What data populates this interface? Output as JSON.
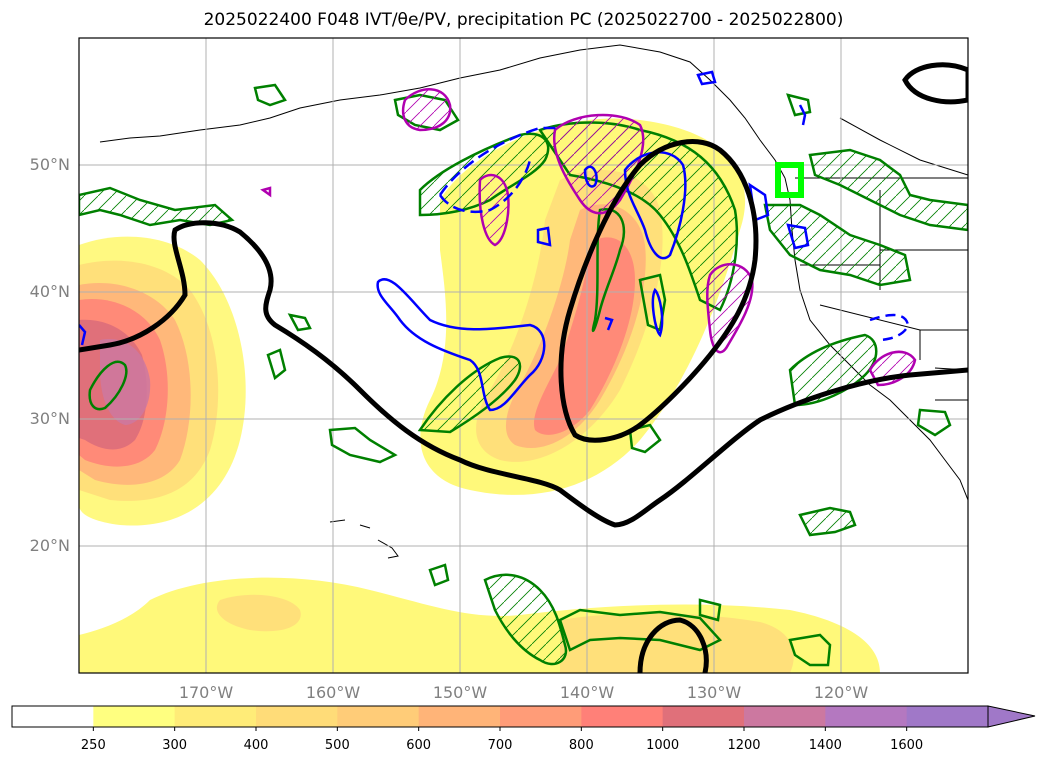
{
  "title": "2025022400 F048 IVT/θe/PV, precipitation PC (2025022700 - 2025022800)",
  "map": {
    "projection": "PlateCarree",
    "lon_range": [
      -180,
      -110
    ],
    "lat_range": [
      10,
      60
    ],
    "lat_ticks": [
      {
        "value": 20,
        "label": "20°N"
      },
      {
        "value": 30,
        "label": "30°N"
      },
      {
        "value": 40,
        "label": "40°N"
      },
      {
        "value": 50,
        "label": "50°N"
      }
    ],
    "lon_ticks": [
      {
        "value": -170,
        "label": "170°W"
      },
      {
        "value": -160,
        "label": "160°W"
      },
      {
        "value": -150,
        "label": "150°W"
      },
      {
        "value": -140,
        "label": "140°W"
      },
      {
        "value": -130,
        "label": "130°W"
      },
      {
        "value": -120,
        "label": "120°W"
      }
    ],
    "grid": true,
    "layers": [
      "IVT shading",
      "precipitation PC contours (green)",
      "PV contours (magenta)",
      "theta-e contours (blue)",
      "black contour",
      "target box (lime)"
    ]
  },
  "colorbar": {
    "levels": [
      "250",
      "300",
      "400",
      "500",
      "600",
      "700",
      "800",
      "1000",
      "1200",
      "1400",
      "1600"
    ],
    "colors": [
      "#ffffff",
      "#ffff80",
      "#ffec78",
      "#ffdc78",
      "#ffcc78",
      "#ffb478",
      "#ff9c78",
      "#ff8078",
      "#e0707a",
      "#cc78a0",
      "#b478c0",
      "#a078c8"
    ],
    "extend": "max"
  },
  "colors": {
    "precip_contour": "#008000",
    "pv_contour": "#b000b0",
    "thetae_contour": "#0000ff",
    "black_contour": "#000000",
    "target_box": "#00ff00",
    "grid": "#b0b0b0",
    "tick_label": "#808080"
  }
}
